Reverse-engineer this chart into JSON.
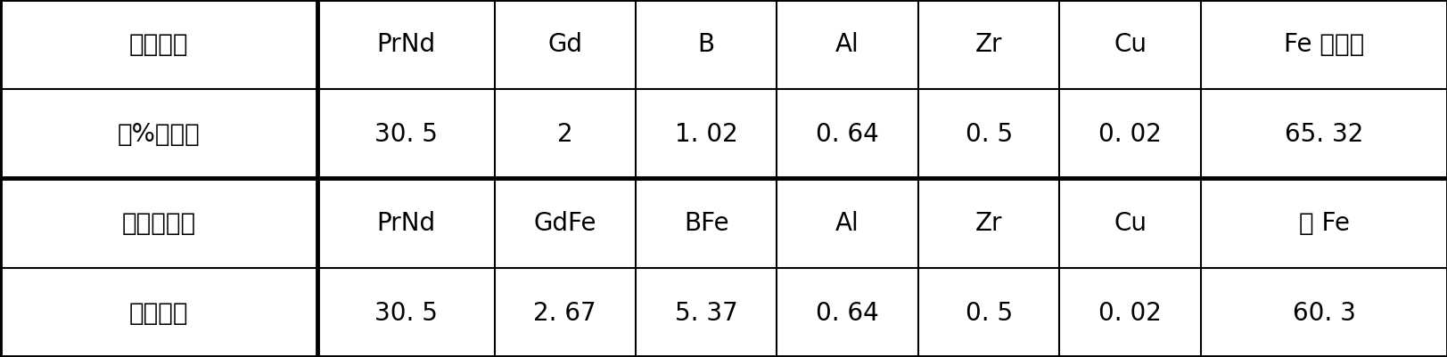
{
  "rows": [
    [
      "成分配比",
      "PrNd",
      "Gd",
      "B",
      "Al",
      "Zr",
      "Cu",
      "Fe 及杂质"
    ],
    [
      "（%重量）",
      "30. 5",
      "2",
      "1. 02",
      "0. 64",
      "0. 5",
      "0. 02",
      "65. 32"
    ],
    [
      "所需原材料",
      "PrNd",
      "GdFe",
      "BFe",
      "Al",
      "Zr",
      "Cu",
      "纯 Fe"
    ],
    [
      "（公斤）",
      "30. 5",
      "2. 67",
      "5. 37",
      "0. 64",
      "0. 5",
      "0. 02",
      "60. 3"
    ]
  ],
  "col_widths_ratio": [
    1.8,
    1.0,
    0.8,
    0.8,
    0.8,
    0.8,
    0.8,
    1.4
  ],
  "background_color": "#ffffff",
  "border_color": "#000000",
  "text_color": "#000000",
  "font_size": 20,
  "fig_width": 16.24,
  "fig_height": 4.02,
  "thick_lw": 3.5,
  "thin_lw": 1.5
}
